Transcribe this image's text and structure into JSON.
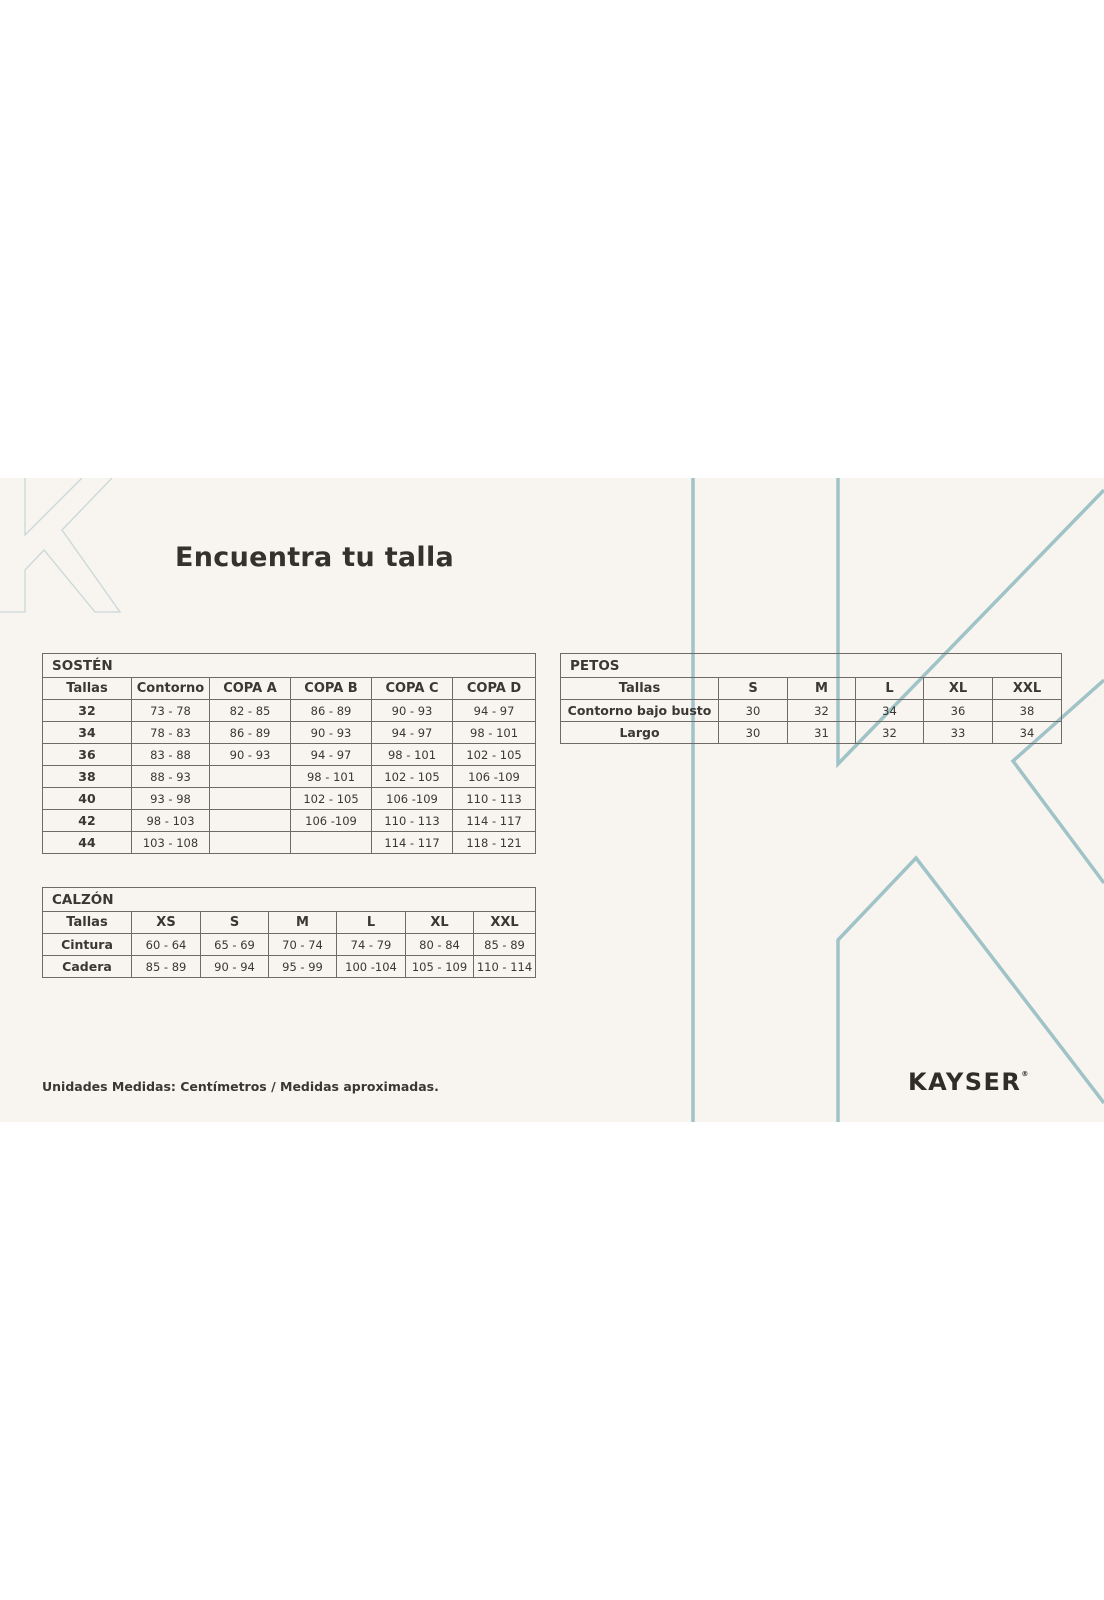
{
  "title": "Encuentra tu talla",
  "colors": {
    "background": "#f8f4f0",
    "accent_lines": "#9fc3c6",
    "text": "#3a3734",
    "border": "#6e6a66"
  },
  "sosten": {
    "caption": "SOSTÉN",
    "headers": [
      "Tallas",
      "Contorno",
      "COPA A",
      "COPA B",
      "COPA C",
      "COPA D"
    ],
    "rows": [
      [
        "32",
        "73 - 78",
        "82 - 85",
        "86 - 89",
        "90 - 93",
        "94 - 97"
      ],
      [
        "34",
        "78 - 83",
        "86 - 89",
        "90 - 93",
        "94 - 97",
        "98 - 101"
      ],
      [
        "36",
        "83 - 88",
        "90 - 93",
        "94 - 97",
        "98 - 101",
        "102 - 105"
      ],
      [
        "38",
        "88 - 93",
        "",
        "98 - 101",
        "102 - 105",
        "106 -109"
      ],
      [
        "40",
        "93 - 98",
        "",
        "102 - 105",
        "106 -109",
        "110 - 113"
      ],
      [
        "42",
        "98 - 103",
        "",
        "106 -109",
        "110 - 113",
        "114 - 117"
      ],
      [
        "44",
        "103 - 108",
        "",
        "",
        "114 - 117",
        "118 - 121"
      ]
    ]
  },
  "calzon": {
    "caption": "CALZÓN",
    "headers": [
      "Tallas",
      "XS",
      "S",
      "M",
      "L",
      "XL",
      "XXL"
    ],
    "rows": [
      [
        "Cintura",
        "60 - 64",
        "65 - 69",
        "70 - 74",
        "74 - 79",
        "80 - 84",
        "85 - 89"
      ],
      [
        "Cadera",
        "85 - 89",
        "90 - 94",
        "95 - 99",
        "100 -104",
        "105 - 109",
        "110 - 114"
      ]
    ]
  },
  "petos": {
    "caption": "PETOS",
    "headers": [
      "Tallas",
      "S",
      "M",
      "L",
      "XL",
      "XXL"
    ],
    "rows": [
      [
        "Contorno bajo busto",
        "30",
        "32",
        "34",
        "36",
        "38"
      ],
      [
        "Largo",
        "30",
        "31",
        "32",
        "33",
        "34"
      ]
    ]
  },
  "footer_note": "Unidades Medidas: Centímetros / Medidas aproximadas.",
  "brand": "KAYSER",
  "brand_mark": "®"
}
